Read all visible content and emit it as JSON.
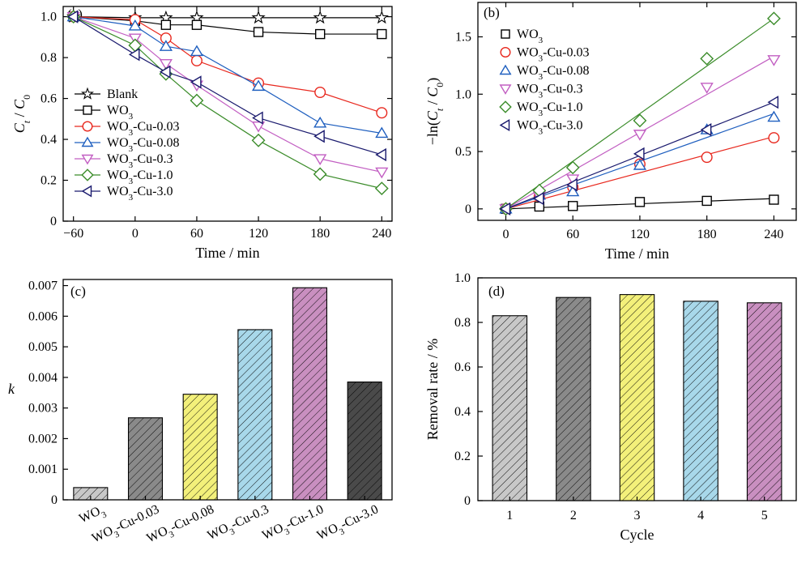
{
  "chart_data": [
    {
      "panel": "(a)",
      "type": "line",
      "xlabel": "Time / min",
      "ylabel_main": "C",
      "ylabel_sub1": "t",
      "ylabel_mid": " / ",
      "ylabel_main2": "C",
      "ylabel_sub2": "0",
      "xlim": [
        -70,
        250
      ],
      "ylim": [
        0,
        1.05
      ],
      "xticks": [
        -60,
        0,
        60,
        120,
        180,
        240
      ],
      "yticks": [
        0,
        0.2,
        0.4,
        0.6,
        0.8,
        1.0
      ],
      "xtick_labels": [
        "−60",
        "0",
        "60",
        "120",
        "180",
        "240"
      ],
      "ytick_labels": [
        "0",
        "0.2",
        "0.4",
        "0.6",
        "0.8",
        "1.0"
      ],
      "x": [
        -60,
        0,
        30,
        60,
        120,
        180,
        240
      ],
      "legend_position": "left",
      "series": [
        {
          "name": "Blank",
          "marker": "star",
          "color": "#000000",
          "values": [
            1.0,
            0.995,
            0.995,
            0.995,
            0.995,
            0.995,
            0.995
          ]
        },
        {
          "name": "WO",
          "name_sub": "3",
          "marker": "square",
          "color": "#000000",
          "values": [
            1.0,
            0.98,
            0.96,
            0.96,
            0.925,
            0.915,
            0.915
          ]
        },
        {
          "name": "WO",
          "name_sub": "3",
          "name_rest": "-Cu-0.03",
          "marker": "circle",
          "color": "#e8281e",
          "values": [
            1.0,
            0.985,
            0.895,
            0.785,
            0.675,
            0.63,
            0.53
          ]
        },
        {
          "name": "WO",
          "name_sub": "3",
          "name_rest": "-Cu-0.08",
          "marker": "triangle-up",
          "color": "#1f5fbf",
          "values": [
            1.0,
            0.955,
            0.855,
            0.83,
            0.66,
            0.48,
            0.43
          ]
        },
        {
          "name": "WO",
          "name_sub": "3",
          "name_rest": "-Cu-0.3",
          "marker": "triangle-down",
          "color": "#c25ec2",
          "values": [
            1.0,
            0.895,
            0.77,
            0.665,
            0.465,
            0.305,
            0.24
          ]
        },
        {
          "name": "WO",
          "name_sub": "3",
          "name_rest": "-Cu-1.0",
          "marker": "diamond",
          "color": "#3b8c2a",
          "values": [
            1.0,
            0.86,
            0.72,
            0.59,
            0.395,
            0.23,
            0.16
          ]
        },
        {
          "name": "WO",
          "name_sub": "3",
          "name_rest": "-Cu-3.0",
          "marker": "triangle-left",
          "color": "#1a1a6e",
          "values": [
            1.0,
            0.815,
            0.73,
            0.68,
            0.505,
            0.415,
            0.325
          ]
        }
      ]
    },
    {
      "panel": "(b)",
      "type": "scatter",
      "xlabel": "Time / min",
      "ylabel_pre": "−ln(",
      "ylabel_main": "C",
      "ylabel_sub1": "t",
      "ylabel_mid": " / ",
      "ylabel_main2": "C",
      "ylabel_sub2": "0",
      "ylabel_post": ")",
      "xlim": [
        -25,
        260
      ],
      "ylim": [
        -0.1,
        1.8
      ],
      "xticks": [
        0,
        60,
        120,
        180,
        240
      ],
      "yticks": [
        0,
        0.5,
        1.0,
        1.5
      ],
      "xtick_labels": [
        "0",
        "60",
        "120",
        "180",
        "240"
      ],
      "ytick_labels": [
        "0",
        "0.5",
        "1.0",
        "1.5"
      ],
      "x": [
        0,
        30,
        60,
        120,
        180,
        240
      ],
      "fit_lines": true,
      "legend_position": "top-left",
      "series": [
        {
          "name": "WO",
          "name_sub": "3",
          "marker": "square",
          "color": "#000000",
          "values": [
            0.0,
            0.02,
            0.025,
            0.06,
            0.07,
            0.08
          ],
          "fit_end": 0.09
        },
        {
          "name": "WO",
          "name_sub": "3",
          "name_rest": "-Cu-0.03",
          "marker": "circle",
          "color": "#e8281e",
          "values": [
            0.0,
            0.11,
            0.19,
            0.39,
            0.45,
            0.62
          ],
          "fit_end": 0.63
        },
        {
          "name": "WO",
          "name_sub": "3",
          "name_rest": "-Cu-0.08",
          "marker": "triangle-up",
          "color": "#1f5fbf",
          "values": [
            0.0,
            0.12,
            0.15,
            0.38,
            0.69,
            0.8
          ],
          "fit_end": 0.83
        },
        {
          "name": "WO",
          "name_sub": "3",
          "name_rest": "-Cu-0.3",
          "marker": "triangle-down",
          "color": "#c25ec2",
          "values": [
            0.0,
            0.11,
            0.26,
            0.65,
            1.06,
            1.3
          ],
          "fit_end": 1.33
        },
        {
          "name": "WO",
          "name_sub": "3",
          "name_rest": "-Cu-1.0",
          "marker": "diamond",
          "color": "#3b8c2a",
          "values": [
            0.0,
            0.16,
            0.36,
            0.77,
            1.31,
            1.66
          ],
          "fit_end": 1.66
        },
        {
          "name": "WO",
          "name_sub": "3",
          "name_rest": "-Cu-3.0",
          "marker": "triangle-left",
          "color": "#1a1a6e",
          "values": [
            0.0,
            0.09,
            0.21,
            0.48,
            0.69,
            0.93
          ],
          "fit_end": 0.93
        }
      ]
    },
    {
      "panel": "(c)",
      "type": "bar",
      "ylabel": "k",
      "ylim": [
        0,
        0.0072
      ],
      "yticks": [
        0,
        0.001,
        0.002,
        0.003,
        0.004,
        0.005,
        0.006,
        0.007
      ],
      "ytick_labels": [
        "0",
        "0.001",
        "0.002",
        "0.003",
        "0.004",
        "0.005",
        "0.006",
        "0.007"
      ],
      "categories": [
        {
          "main": "WO",
          "sub": "3",
          "rest": ""
        },
        {
          "main": "WO",
          "sub": "3",
          "rest": "-Cu-0.03"
        },
        {
          "main": "WO",
          "sub": "3",
          "rest": "-Cu-0.08"
        },
        {
          "main": "WO",
          "sub": "3",
          "rest": "-Cu-0.3"
        },
        {
          "main": "WO",
          "sub": "3",
          "rest": "-Cu-1.0"
        },
        {
          "main": "WO",
          "sub": "3",
          "rest": "-Cu-3.0"
        }
      ],
      "values": [
        0.0004,
        0.00268,
        0.00345,
        0.00556,
        0.00693,
        0.00385
      ],
      "colors": [
        "#c8c8c8",
        "#8a8a8a",
        "#f3f07a",
        "#a8d8ea",
        "#c98fc0",
        "#4a4a4a"
      ]
    },
    {
      "panel": "(d)",
      "type": "bar",
      "xlabel": "Cycle",
      "ylabel": "Removal rate / %",
      "ylim": [
        0,
        1.0
      ],
      "yticks": [
        0,
        0.2,
        0.4,
        0.6,
        0.8,
        1.0
      ],
      "ytick_labels": [
        "0",
        "0.2",
        "0.4",
        "0.6",
        "0.8",
        "1.0"
      ],
      "categories": [
        "1",
        "2",
        "3",
        "4",
        "5"
      ],
      "values": [
        0.83,
        0.912,
        0.925,
        0.895,
        0.888
      ],
      "colors": [
        "#c8c8c8",
        "#8a8a8a",
        "#f3f07a",
        "#a8d8ea",
        "#c98fc0"
      ]
    }
  ]
}
